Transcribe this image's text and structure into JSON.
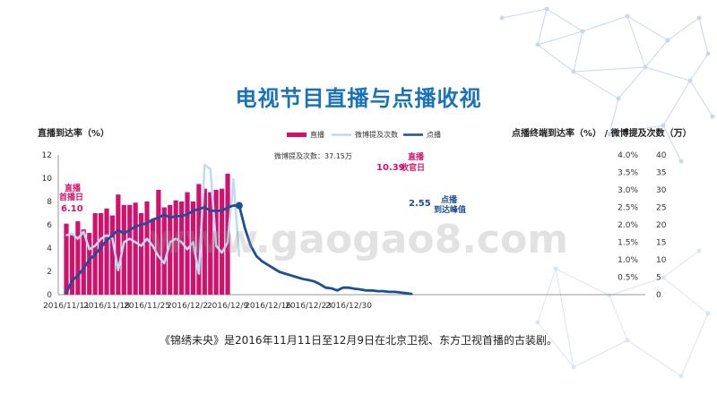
{
  "page": {
    "title": "电视节目直播与点播收视",
    "caption": "《锦绣未央》是2016年11月11日至12月9日在北京卫视、东方卫视首播的古装剧。",
    "watermark": "www.gaogao8.com"
  },
  "chart_data": {
    "type": "bar",
    "left_axis": {
      "label": "直播到达率（%）",
      "range": [
        0,
        12
      ],
      "ticks": [
        "0",
        "2",
        "4",
        "6",
        "8",
        "10",
        "12"
      ]
    },
    "right_axis_pct": {
      "label": "点播终端到达率（%）",
      "range": [
        0,
        4
      ],
      "ticks": [
        "",
        "0.5%",
        "1.0%",
        "1.5%",
        "2.0%",
        "2.5%",
        "3.0%",
        "3.5%",
        "4.0%"
      ]
    },
    "right_axis_count": {
      "label": " / 微博提及次数（万）",
      "range": [
        0,
        40
      ],
      "ticks": [
        "0",
        "5",
        "10",
        "15",
        "20",
        "25",
        "30",
        "35",
        "40"
      ]
    },
    "x_tick_labels": [
      "2016/11/11",
      "2016/11/18",
      "2016/11/25",
      "2016/12/2",
      "2016/12/9",
      "2016/12/16",
      "2016/12/23",
      "2016/12/30"
    ],
    "legend": [
      "直播",
      "微博提及次数",
      "点播"
    ],
    "colors": {
      "live": "#d0126f",
      "weibo": "#bcdcf3",
      "vod": "#1c4f95",
      "title": "#1a73b8"
    },
    "series": [
      {
        "name": "直播",
        "axis": "left",
        "start_day": 0,
        "values": [
          6.1,
          5.1,
          6.3,
          5.6,
          5.3,
          7.0,
          7.0,
          7.4,
          6.8,
          8.6,
          7.7,
          7.7,
          7.9,
          7.0,
          8.0,
          6.5,
          9.0,
          7.5,
          7.7,
          8.1,
          8.0,
          8.8,
          8.0,
          9.5,
          9.1,
          8.8,
          9.0,
          9.1,
          10.39
        ]
      },
      {
        "name": "微博提及次数",
        "axis": "right_count",
        "start_day": 0,
        "values": [
          17,
          17.5,
          16,
          18,
          13,
          14,
          16,
          17,
          16,
          7,
          15,
          16,
          15,
          14,
          16,
          14,
          11,
          9,
          15,
          16,
          15,
          13,
          15,
          6,
          37.15,
          36,
          14,
          12,
          15,
          33,
          11
        ]
      },
      {
        "name": "点播",
        "axis": "right_pct",
        "start_day": 0,
        "values": [
          0.05,
          0.4,
          0.55,
          0.75,
          1.0,
          1.15,
          1.35,
          1.55,
          1.7,
          1.85,
          1.75,
          1.85,
          1.95,
          2.0,
          2.05,
          2.15,
          2.2,
          2.3,
          2.2,
          2.25,
          2.25,
          2.3,
          2.4,
          2.45,
          2.5,
          2.4,
          2.4,
          2.4,
          2.5,
          2.55,
          2.55,
          1.9,
          1.4,
          1.1,
          0.95,
          0.85,
          0.75,
          0.65,
          0.6,
          0.55,
          0.5,
          0.45,
          0.42,
          0.38,
          0.3,
          0.2,
          0.18,
          0.12,
          0.2,
          0.2,
          0.17,
          0.15,
          0.12,
          0.12,
          0.1,
          0.1,
          0.08,
          0.08,
          0.06,
          0.04,
          0.02
        ]
      }
    ],
    "annotations": {
      "live_first_day": {
        "line1": "直播",
        "line2": "首播日",
        "value": "6.10"
      },
      "live_finale": {
        "value": "10.39",
        "label": "直播",
        "label2": "收官日"
      },
      "vod_peak": {
        "value": "2.55",
        "label": "点播",
        "label2": "到达峰值"
      },
      "weibo_peak": "微博提及次数：37.15万"
    }
  }
}
